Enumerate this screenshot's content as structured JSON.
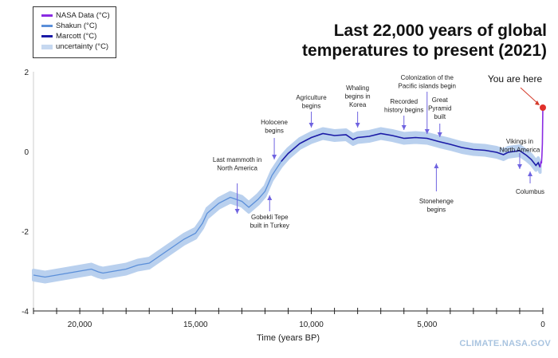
{
  "title_lines": [
    "Last 22,000 years of global",
    "temperatures to present (2021)"
  ],
  "credit": "CLIMATE.NASA.GOV",
  "legend": [
    {
      "label": "NASA Data (°C)",
      "color": "#8a2be2"
    },
    {
      "label": "Shakun (°C)",
      "color": "#5b8fd9"
    },
    {
      "label": "Marcott (°C)",
      "color": "#1a1aa6"
    },
    {
      "label": "uncertainty (°C)",
      "color": "#c6d8f0"
    }
  ],
  "chart_data": {
    "type": "line",
    "xlabel": "Time (years BP)",
    "ylabel": "",
    "xlim": [
      22000,
      0
    ],
    "ylim": [
      -4,
      2
    ],
    "xticks": [
      {
        "v": 20000,
        "label": "20,000"
      },
      {
        "v": 15000,
        "label": "15,000"
      },
      {
        "v": 10000,
        "label": "10,000"
      },
      {
        "v": 5000,
        "label": "5,000"
      },
      {
        "v": 0,
        "label": "0"
      }
    ],
    "yticks": [
      {
        "v": 2,
        "label": "2"
      },
      {
        "v": 0,
        "label": "0"
      },
      {
        "v": -2,
        "label": "-2"
      },
      {
        "v": -4,
        "label": "-4"
      }
    ],
    "uncertainty": 0.12,
    "series": [
      {
        "name": "Shakun (°C)",
        "color": "#5b8fd9",
        "x": [
          22000,
          21500,
          21000,
          20500,
          20000,
          19500,
          19200,
          19000,
          18500,
          18000,
          17500,
          17000,
          16500,
          16000,
          15500,
          15000,
          14700,
          14500,
          14000,
          13500,
          13000,
          12700,
          12300,
          12000,
          11700,
          11300
        ],
        "y": [
          -3.1,
          -3.15,
          -3.1,
          -3.05,
          -3.0,
          -2.95,
          -3.02,
          -3.05,
          -3.0,
          -2.95,
          -2.85,
          -2.8,
          -2.6,
          -2.4,
          -2.2,
          -2.05,
          -1.8,
          -1.55,
          -1.3,
          -1.15,
          -1.25,
          -1.4,
          -1.2,
          -1.0,
          -0.6,
          -0.25
        ]
      },
      {
        "name": "Marcott (°C)",
        "color": "#1a1aa6",
        "x": [
          11300,
          11000,
          10500,
          10000,
          9500,
          9000,
          8500,
          8200,
          8000,
          7500,
          7000,
          6500,
          6000,
          5500,
          5000,
          4500,
          4000,
          3500,
          3000,
          2500,
          2000,
          1700,
          1500,
          1000,
          700,
          500,
          300,
          200,
          120
        ],
        "y": [
          -0.25,
          -0.05,
          0.2,
          0.35,
          0.45,
          0.4,
          0.42,
          0.3,
          0.35,
          0.38,
          0.45,
          0.4,
          0.33,
          0.35,
          0.33,
          0.25,
          0.18,
          0.1,
          0.05,
          0.03,
          -0.02,
          -0.08,
          -0.02,
          0.02,
          -0.1,
          -0.2,
          -0.35,
          -0.28,
          -0.4
        ]
      },
      {
        "name": "NASA Data (°C)",
        "color": "#8a2be2",
        "x": [
          120,
          80,
          60,
          40,
          20,
          0
        ],
        "y": [
          -0.4,
          -0.25,
          -0.3,
          -0.1,
          0.2,
          1.1
        ]
      }
    ],
    "annotations": [
      {
        "label": "Last mammoth in\nNorth America",
        "x": 13200,
        "dir": "down"
      },
      {
        "label": "Gobekli Tepe\nbuilt in Turkey",
        "x": 11800,
        "dir": "up"
      },
      {
        "label": "Holocene\nbegins",
        "x": 11600,
        "dir": "down"
      },
      {
        "label": "Agriculture\nbegins",
        "x": 10000,
        "dir": "down"
      },
      {
        "label": "Whaling\nbegins in\nKorea",
        "x": 8000,
        "dir": "down"
      },
      {
        "label": "Recorded\nhistory begins",
        "x": 6000,
        "dir": "down"
      },
      {
        "label": "Colonization of the\nPacific islands begin",
        "x": 5000,
        "dir": "down"
      },
      {
        "label": "Great\nPyramid\nbuilt",
        "x": 4450,
        "dir": "down"
      },
      {
        "label": "Stonehenge\nbegins",
        "x": 4600,
        "dir": "up"
      },
      {
        "label": "Vikings in\nNorth America",
        "x": 1000,
        "dir": "down"
      },
      {
        "label": "Columbus",
        "x": 550,
        "dir": "up"
      },
      {
        "label": "You are here",
        "x": 0,
        "dir": "pointer"
      }
    ]
  }
}
